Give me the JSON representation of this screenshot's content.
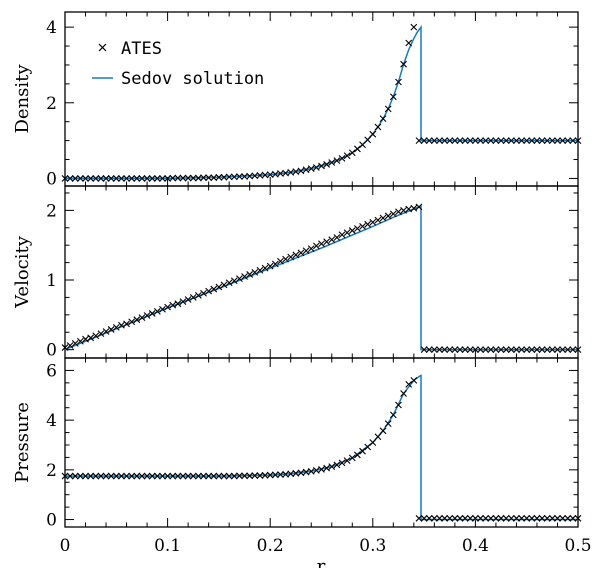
{
  "colors": {
    "ates": "#000000",
    "sedov": "#1a7ab8",
    "frame": "#000000"
  },
  "legend": {
    "placement": "top-left",
    "ates_label": "ATES",
    "sedov_label": "Sedov solution"
  },
  "xlabel": "r",
  "chart_data": [
    {
      "type": "line",
      "ylabel": "Density",
      "xlim": [
        0,
        0.5
      ],
      "ylim": [
        -0.2,
        4.4
      ],
      "xticks": [
        0,
        0.1,
        0.2,
        0.3,
        0.4,
        0.5
      ],
      "xtick_labels": [
        "0",
        "0.1",
        "0.2",
        "0.3",
        "0.4",
        "0.5"
      ],
      "yticks": [
        0,
        2,
        4
      ],
      "ytick_labels": [
        "0",
        "2",
        "4"
      ],
      "shock_r": 0.347,
      "post_shock": 1.0,
      "series": [
        {
          "name": "ATES",
          "style": "x",
          "x": [
            0,
            0.005,
            0.01,
            0.015,
            0.02,
            0.025,
            0.03,
            0.035,
            0.04,
            0.045,
            0.05,
            0.055,
            0.06,
            0.065,
            0.07,
            0.075,
            0.08,
            0.085,
            0.09,
            0.095,
            0.1,
            0.105,
            0.11,
            0.115,
            0.12,
            0.125,
            0.13,
            0.135,
            0.14,
            0.145,
            0.15,
            0.155,
            0.16,
            0.165,
            0.17,
            0.175,
            0.18,
            0.185,
            0.19,
            0.195,
            0.2,
            0.205,
            0.21,
            0.215,
            0.22,
            0.225,
            0.23,
            0.235,
            0.24,
            0.245,
            0.25,
            0.255,
            0.26,
            0.265,
            0.27,
            0.275,
            0.28,
            0.285,
            0.29,
            0.295,
            0.3,
            0.305,
            0.31,
            0.315,
            0.32,
            0.325,
            0.33,
            0.335,
            0.34,
            0.345,
            0.35,
            0.355,
            0.36,
            0.365,
            0.37,
            0.375,
            0.38,
            0.385,
            0.39,
            0.395,
            0.4,
            0.405,
            0.41,
            0.415,
            0.42,
            0.425,
            0.43,
            0.435,
            0.44,
            0.445,
            0.45,
            0.455,
            0.46,
            0.465,
            0.47,
            0.475,
            0.48,
            0.485,
            0.49,
            0.495,
            0.5
          ],
          "y": [
            0.0,
            0.0,
            0.0,
            0.0,
            0.0,
            0.0,
            0.0,
            0.0,
            0.0,
            0.0,
            0.0,
            0.0,
            0.0,
            0.0,
            0.0,
            0.0,
            0.0,
            0.0,
            0.0,
            0.0,
            0.0,
            0.01,
            0.01,
            0.01,
            0.01,
            0.01,
            0.01,
            0.02,
            0.02,
            0.02,
            0.03,
            0.03,
            0.04,
            0.04,
            0.05,
            0.05,
            0.06,
            0.07,
            0.08,
            0.09,
            0.1,
            0.11,
            0.13,
            0.14,
            0.16,
            0.18,
            0.2,
            0.23,
            0.26,
            0.29,
            0.33,
            0.37,
            0.42,
            0.47,
            0.53,
            0.6,
            0.68,
            0.78,
            0.89,
            1.02,
            1.17,
            1.36,
            1.58,
            1.84,
            2.16,
            2.55,
            3.02,
            3.58,
            4.0,
            1.0,
            1.0,
            1.0,
            1.0,
            1.0,
            1.0,
            1.0,
            1.0,
            1.0,
            1.0,
            1.0,
            1.0,
            1.0,
            1.0,
            1.0,
            1.0,
            1.0,
            1.0,
            1.0,
            1.0,
            1.0,
            1.0,
            1.0,
            1.0,
            1.0,
            1.0,
            1.0,
            1.0,
            1.0,
            1.0,
            1.0,
            1.0
          ]
        },
        {
          "name": "Sedov solution",
          "style": "line",
          "x": [
            0,
            0.05,
            0.1,
            0.15,
            0.2,
            0.22,
            0.24,
            0.26,
            0.27,
            0.28,
            0.29,
            0.3,
            0.305,
            0.31,
            0.315,
            0.32,
            0.325,
            0.33,
            0.335,
            0.34,
            0.343,
            0.345,
            0.347
          ],
          "y": [
            0,
            0.0,
            0.0,
            0.03,
            0.1,
            0.16,
            0.26,
            0.42,
            0.53,
            0.68,
            0.89,
            1.17,
            1.36,
            1.58,
            1.84,
            2.16,
            2.55,
            3.02,
            3.4,
            3.7,
            3.85,
            3.93,
            4.0
          ]
        }
      ]
    },
    {
      "type": "line",
      "ylabel": "Velocity",
      "xlim": [
        0,
        0.5
      ],
      "ylim": [
        -0.12,
        2.35
      ],
      "xticks": [
        0,
        0.1,
        0.2,
        0.3,
        0.4,
        0.5
      ],
      "xtick_labels": [
        "",
        "",
        "",
        "",
        "",
        ""
      ],
      "yticks": [
        0,
        1,
        2
      ],
      "ytick_labels": [
        "0",
        "1",
        "2"
      ],
      "shock_r": 0.347,
      "post_shock": 0.0,
      "series": [
        {
          "name": "ATES",
          "style": "x",
          "x": [
            0,
            0.005,
            0.01,
            0.015,
            0.02,
            0.025,
            0.03,
            0.035,
            0.04,
            0.045,
            0.05,
            0.055,
            0.06,
            0.065,
            0.07,
            0.075,
            0.08,
            0.085,
            0.09,
            0.095,
            0.1,
            0.105,
            0.11,
            0.115,
            0.12,
            0.125,
            0.13,
            0.135,
            0.14,
            0.145,
            0.15,
            0.155,
            0.16,
            0.165,
            0.17,
            0.175,
            0.18,
            0.185,
            0.19,
            0.195,
            0.2,
            0.205,
            0.21,
            0.215,
            0.22,
            0.225,
            0.23,
            0.235,
            0.24,
            0.245,
            0.25,
            0.255,
            0.26,
            0.265,
            0.27,
            0.275,
            0.28,
            0.285,
            0.29,
            0.295,
            0.3,
            0.305,
            0.31,
            0.315,
            0.32,
            0.325,
            0.33,
            0.335,
            0.34,
            0.345,
            0.35,
            0.355,
            0.36,
            0.365,
            0.37,
            0.375,
            0.38,
            0.385,
            0.39,
            0.395,
            0.4,
            0.405,
            0.41,
            0.415,
            0.42,
            0.425,
            0.43,
            0.435,
            0.44,
            0.445,
            0.45,
            0.455,
            0.46,
            0.465,
            0.47,
            0.475,
            0.48,
            0.485,
            0.49,
            0.495,
            0.5
          ],
          "y": [
            0.03,
            0.06,
            0.09,
            0.12,
            0.15,
            0.17,
            0.2,
            0.23,
            0.26,
            0.29,
            0.32,
            0.35,
            0.37,
            0.4,
            0.43,
            0.46,
            0.49,
            0.52,
            0.55,
            0.58,
            0.61,
            0.64,
            0.66,
            0.69,
            0.72,
            0.75,
            0.78,
            0.81,
            0.84,
            0.87,
            0.9,
            0.93,
            0.96,
            0.99,
            1.02,
            1.05,
            1.08,
            1.11,
            1.14,
            1.17,
            1.2,
            1.23,
            1.27,
            1.3,
            1.33,
            1.36,
            1.39,
            1.42,
            1.45,
            1.49,
            1.52,
            1.55,
            1.58,
            1.61,
            1.65,
            1.68,
            1.71,
            1.74,
            1.77,
            1.8,
            1.83,
            1.86,
            1.89,
            1.92,
            1.95,
            1.98,
            2.0,
            2.02,
            2.03,
            2.05,
            0.0,
            0.0,
            0.0,
            0.0,
            0.0,
            0.0,
            0.0,
            0.0,
            0.0,
            0.0,
            0.0,
            0.0,
            0.0,
            0.0,
            0.0,
            0.0,
            0.0,
            0.0,
            0.0,
            0.0,
            0.0,
            0.0,
            0.0,
            0.0,
            0.0,
            0.0,
            0.0,
            0.0,
            0.0,
            0.0,
            0.0
          ]
        },
        {
          "name": "Sedov solution",
          "style": "line",
          "x": [
            0,
            0.05,
            0.1,
            0.15,
            0.2,
            0.25,
            0.3,
            0.32,
            0.34,
            0.347
          ],
          "y": [
            0.0,
            0.3,
            0.6,
            0.88,
            1.17,
            1.46,
            1.77,
            1.9,
            2.02,
            2.06
          ]
        }
      ]
    },
    {
      "type": "line",
      "ylabel": "Pressure",
      "xlim": [
        0,
        0.5
      ],
      "ylim": [
        -0.3,
        6.5
      ],
      "xticks": [
        0,
        0.1,
        0.2,
        0.3,
        0.4,
        0.5
      ],
      "xtick_labels": [
        "0",
        "0.1",
        "0.2",
        "0.3",
        "0.4",
        "0.5"
      ],
      "yticks": [
        0,
        2,
        4,
        6
      ],
      "ytick_labels": [
        "0",
        "2",
        "4",
        "6"
      ],
      "shock_r": 0.347,
      "post_shock": 0.0,
      "series": [
        {
          "name": "ATES",
          "style": "x",
          "x": [
            0,
            0.005,
            0.01,
            0.015,
            0.02,
            0.025,
            0.03,
            0.035,
            0.04,
            0.045,
            0.05,
            0.055,
            0.06,
            0.065,
            0.07,
            0.075,
            0.08,
            0.085,
            0.09,
            0.095,
            0.1,
            0.105,
            0.11,
            0.115,
            0.12,
            0.125,
            0.13,
            0.135,
            0.14,
            0.145,
            0.15,
            0.155,
            0.16,
            0.165,
            0.17,
            0.175,
            0.18,
            0.185,
            0.19,
            0.195,
            0.2,
            0.205,
            0.21,
            0.215,
            0.22,
            0.225,
            0.23,
            0.235,
            0.24,
            0.245,
            0.25,
            0.255,
            0.26,
            0.265,
            0.27,
            0.275,
            0.28,
            0.285,
            0.29,
            0.295,
            0.3,
            0.305,
            0.31,
            0.315,
            0.32,
            0.325,
            0.33,
            0.335,
            0.34,
            0.345,
            0.35,
            0.355,
            0.36,
            0.365,
            0.37,
            0.375,
            0.38,
            0.385,
            0.39,
            0.395,
            0.4,
            0.405,
            0.41,
            0.415,
            0.42,
            0.425,
            0.43,
            0.435,
            0.44,
            0.445,
            0.45,
            0.455,
            0.46,
            0.465,
            0.47,
            0.475,
            0.48,
            0.485,
            0.49,
            0.495,
            0.5
          ],
          "y": [
            1.75,
            1.75,
            1.75,
            1.75,
            1.75,
            1.75,
            1.75,
            1.75,
            1.75,
            1.75,
            1.75,
            1.75,
            1.75,
            1.75,
            1.75,
            1.75,
            1.75,
            1.75,
            1.75,
            1.75,
            1.75,
            1.75,
            1.75,
            1.75,
            1.75,
            1.75,
            1.75,
            1.75,
            1.75,
            1.75,
            1.75,
            1.75,
            1.75,
            1.75,
            1.76,
            1.76,
            1.76,
            1.77,
            1.77,
            1.78,
            1.79,
            1.8,
            1.81,
            1.82,
            1.84,
            1.86,
            1.88,
            1.91,
            1.94,
            1.98,
            2.02,
            2.07,
            2.13,
            2.2,
            2.28,
            2.37,
            2.48,
            2.6,
            2.75,
            2.92,
            3.1,
            3.33,
            3.57,
            3.86,
            4.21,
            4.61,
            5.07,
            5.44,
            5.6,
            0.05,
            0.05,
            0.05,
            0.05,
            0.05,
            0.05,
            0.05,
            0.05,
            0.05,
            0.05,
            0.05,
            0.05,
            0.05,
            0.05,
            0.05,
            0.05,
            0.05,
            0.05,
            0.05,
            0.05,
            0.05,
            0.05,
            0.05,
            0.05,
            0.05,
            0.05,
            0.05,
            0.05,
            0.05,
            0.05,
            0.05,
            0.05
          ]
        },
        {
          "name": "Sedov solution",
          "style": "line",
          "x": [
            0,
            0.1,
            0.15,
            0.2,
            0.22,
            0.24,
            0.26,
            0.28,
            0.3,
            0.31,
            0.32,
            0.33,
            0.34,
            0.345,
            0.347
          ],
          "y": [
            1.75,
            1.75,
            1.75,
            1.79,
            1.84,
            1.94,
            2.13,
            2.48,
            3.1,
            3.57,
            4.21,
            5.07,
            5.6,
            5.75,
            5.8
          ]
        }
      ]
    }
  ]
}
